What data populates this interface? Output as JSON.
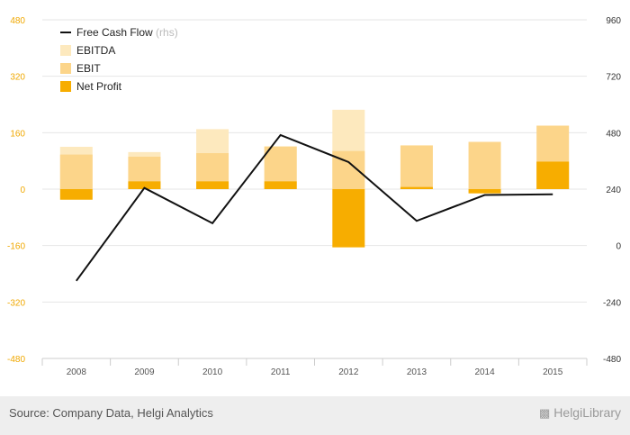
{
  "chart_data": {
    "type": "bar",
    "categories": [
      "2008",
      "2009",
      "2010",
      "2011",
      "2012",
      "2013",
      "2014",
      "2015"
    ],
    "series": [
      {
        "name": "EBITDA",
        "values": [
          120,
          105,
          170,
          122,
          225,
          null,
          null,
          null
        ],
        "color": "#fde9be"
      },
      {
        "name": "EBIT",
        "values": [
          98,
          92,
          102,
          120,
          108,
          124,
          134,
          180
        ],
        "color": "#fcd58a"
      },
      {
        "name": "Net Profit",
        "values": [
          -30,
          22,
          22,
          22,
          -165,
          6,
          -12,
          78
        ],
        "color": "#f7ad00"
      }
    ],
    "line_series": {
      "name": "Free Cash Flow",
      "axis_note": "(rhs)",
      "values": [
        -150,
        245,
        95,
        470,
        355,
        105,
        215,
        218
      ],
      "color": "#111111"
    },
    "y_left": {
      "ticks": [
        "480",
        "320",
        "160",
        "0",
        "-160",
        "-320",
        "-480"
      ],
      "min": -480,
      "max": 480
    },
    "y_right": {
      "ticks": [
        "960",
        "720",
        "480",
        "240",
        "0",
        "-240",
        "-480"
      ],
      "min": -480,
      "max": 960
    },
    "grid": true,
    "legend_position": "top-left"
  },
  "footer": {
    "source": "Source: Company Data, Helgi Analytics",
    "logo_text": "HelgiLibrary",
    "logo_icon": "book-icon"
  }
}
